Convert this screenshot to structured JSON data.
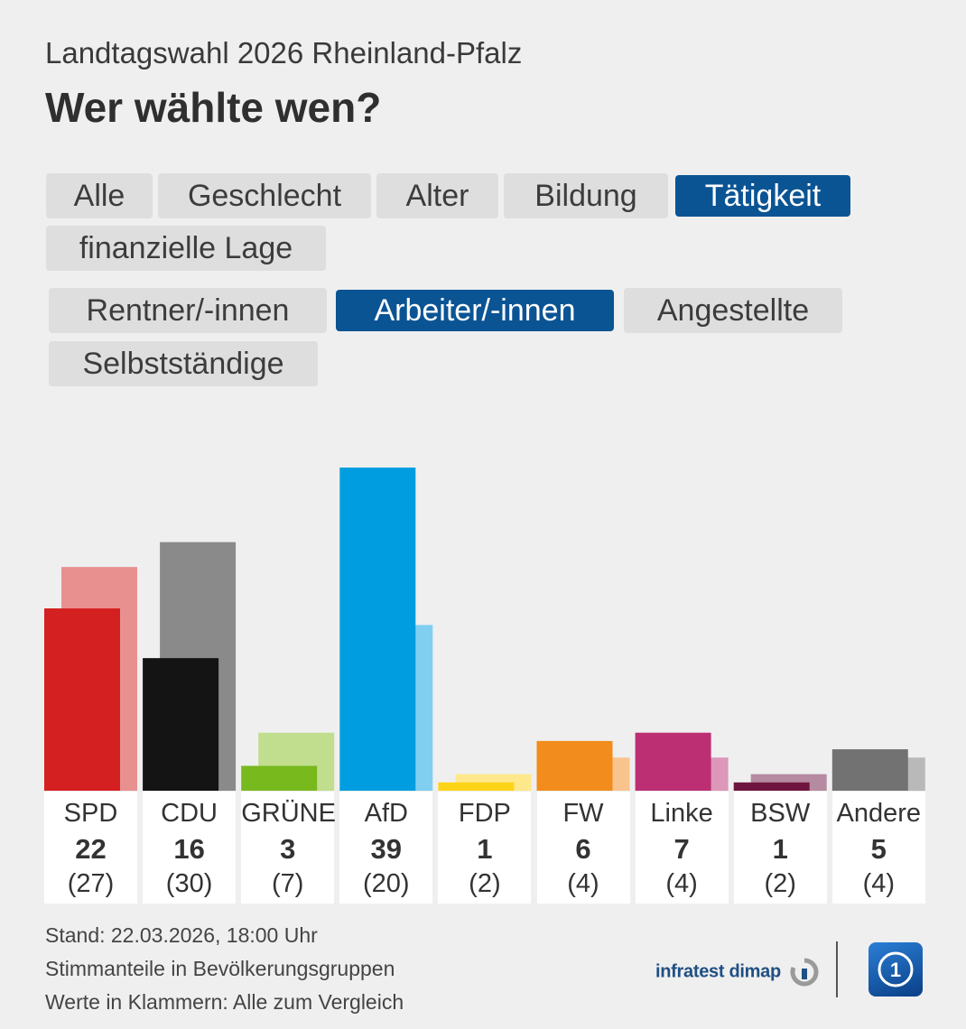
{
  "header": {
    "subtitle": "Landtagswahl 2026 Rheinland-Pfalz",
    "title": "Wer wählte wen?"
  },
  "category_tabs": [
    {
      "label": "Alle",
      "active": false
    },
    {
      "label": "Geschlecht",
      "active": false
    },
    {
      "label": "Alter",
      "active": false
    },
    {
      "label": "Bildung",
      "active": false
    },
    {
      "label": "Tätigkeit",
      "active": true
    },
    {
      "label": "finanzielle Lage",
      "active": false
    }
  ],
  "group_tabs": [
    {
      "label": "Rentner/-innen",
      "active": false
    },
    {
      "label": "Arbeiter/-innen",
      "active": true
    },
    {
      "label": "Angestellte",
      "active": false
    },
    {
      "label": "Selbstständige",
      "active": false
    }
  ],
  "chart_data": {
    "type": "bar",
    "title": "Wer wählte wen?",
    "group": "Arbeiter/-innen",
    "categories": [
      "SPD",
      "CDU",
      "GRÜNE",
      "AfD",
      "FDP",
      "FW",
      "Linke",
      "BSW",
      "Andere"
    ],
    "series": [
      {
        "name": "Arbeiter/-innen",
        "values": [
          22,
          16,
          3,
          39,
          1,
          6,
          7,
          1,
          5
        ]
      },
      {
        "name": "Alle",
        "values": [
          27,
          30,
          7,
          20,
          2,
          4,
          4,
          2,
          4
        ]
      }
    ],
    "compare_labels": [
      "(27)",
      "(30)",
      "(7)",
      "(20)",
      "(2)",
      "(4)",
      "(4)",
      "(2)",
      "(4)"
    ],
    "colors": [
      "#d42020",
      "#141414",
      "#78b91e",
      "#009ee0",
      "#fdd418",
      "#f28c1c",
      "#bc2f73",
      "#6e1640",
      "#727272"
    ],
    "compare_colors": [
      "#e89090",
      "#8a8a8a",
      "#c0de8e",
      "#80cff0",
      "#fee88c",
      "#f9c38e",
      "#dd97b9",
      "#b68aa0",
      "#b9b9b9"
    ],
    "ylim": [
      0,
      40
    ],
    "unit": "%"
  },
  "footer": {
    "stand": "Stand: 22.03.2026, 18:00 Uhr",
    "note1": "Stimmanteile in Bevölkerungsgruppen",
    "note2": "Werte in Klammern: Alle zum Vergleich"
  },
  "brand": {
    "name": "infratest dimap",
    "logo_icon": "ard-one-logo-icon"
  }
}
